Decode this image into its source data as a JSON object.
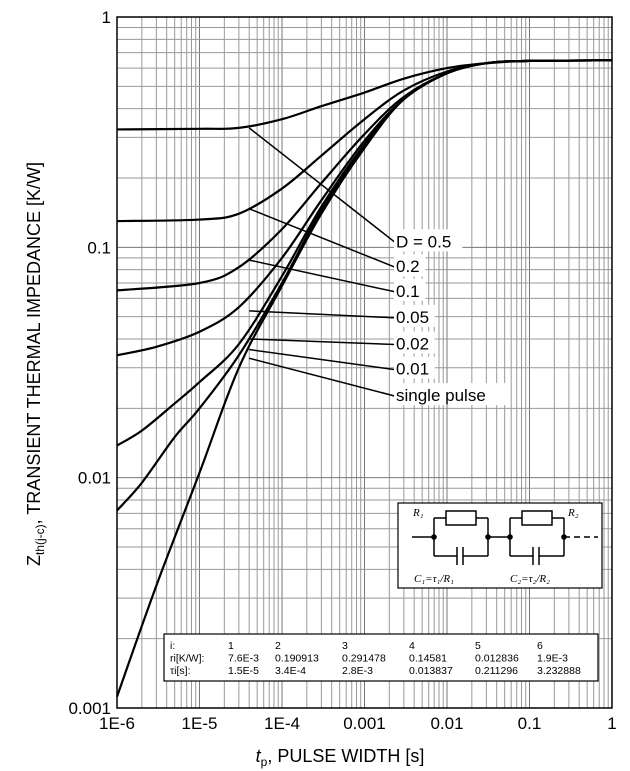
{
  "chart_data": {
    "type": "line",
    "xscale": "log",
    "yscale": "log",
    "xlim": [
      1e-06,
      1
    ],
    "ylim": [
      0.001,
      1
    ],
    "grid": true,
    "xlabel_var": "t",
    "xlabel_sub": "p",
    "xlabel_rest": ", PULSE WIDTH [s]",
    "ylabel_var": "Z",
    "ylabel_sub": "th(j-c)",
    "ylabel_rest": ", TRANSIENT THERMAL IMPEDANCE [K/W]",
    "x_ticks": [
      "1E-6",
      "1E-5",
      "1E-4",
      "0.001",
      "0.01",
      "0.1",
      "1"
    ],
    "y_ticks": [
      "0.001",
      "0.01",
      "0.1",
      "1"
    ],
    "series": [
      {
        "name": "D = 0.5",
        "label_point": [
          4e-05,
          0.33
        ],
        "points": [
          [
            1e-06,
            0.325
          ],
          [
            1e-05,
            0.327
          ],
          [
            3e-05,
            0.33
          ],
          [
            0.0001,
            0.36
          ],
          [
            0.0003,
            0.41
          ],
          [
            0.001,
            0.47
          ],
          [
            0.003,
            0.54
          ],
          [
            0.01,
            0.6
          ],
          [
            0.03,
            0.63
          ],
          [
            0.1,
            0.645
          ],
          [
            1,
            0.648
          ]
        ]
      },
      {
        "name": "0.2",
        "label_point": [
          4e-05,
          0.147
        ],
        "points": [
          [
            1e-06,
            0.13
          ],
          [
            1e-05,
            0.132
          ],
          [
            3e-05,
            0.14
          ],
          [
            0.0001,
            0.18
          ],
          [
            0.0003,
            0.25
          ],
          [
            0.001,
            0.36
          ],
          [
            0.003,
            0.48
          ],
          [
            0.01,
            0.58
          ],
          [
            0.03,
            0.63
          ],
          [
            0.1,
            0.645
          ],
          [
            1,
            0.648
          ]
        ]
      },
      {
        "name": "0.1",
        "label_point": [
          4e-05,
          0.088
        ],
        "points": [
          [
            1e-06,
            0.065
          ],
          [
            1e-05,
            0.07
          ],
          [
            3e-05,
            0.082
          ],
          [
            0.0001,
            0.12
          ],
          [
            0.0003,
            0.19
          ],
          [
            0.001,
            0.31
          ],
          [
            0.003,
            0.45
          ],
          [
            0.01,
            0.57
          ],
          [
            0.03,
            0.63
          ],
          [
            0.1,
            0.645
          ],
          [
            1,
            0.648
          ]
        ]
      },
      {
        "name": "0.05",
        "label_point": [
          4e-05,
          0.053
        ],
        "points": [
          [
            1e-06,
            0.034
          ],
          [
            3e-06,
            0.037
          ],
          [
            1e-05,
            0.043
          ],
          [
            3e-05,
            0.055
          ],
          [
            0.0001,
            0.09
          ],
          [
            0.0003,
            0.16
          ],
          [
            0.001,
            0.29
          ],
          [
            0.003,
            0.44
          ],
          [
            0.01,
            0.57
          ],
          [
            0.03,
            0.63
          ],
          [
            0.1,
            0.645
          ],
          [
            1,
            0.648
          ]
        ]
      },
      {
        "name": "0.02",
        "label_point": [
          4e-05,
          0.04
        ],
        "points": [
          [
            1e-06,
            0.0138
          ],
          [
            2e-06,
            0.016
          ],
          [
            5e-06,
            0.021
          ],
          [
            1e-05,
            0.026
          ],
          [
            3e-05,
            0.038
          ],
          [
            0.0001,
            0.075
          ],
          [
            0.0003,
            0.15
          ],
          [
            0.001,
            0.28
          ],
          [
            0.003,
            0.44
          ],
          [
            0.01,
            0.57
          ],
          [
            0.03,
            0.63
          ],
          [
            0.1,
            0.645
          ],
          [
            1,
            0.648
          ]
        ]
      },
      {
        "name": "0.01",
        "label_point": [
          4e-05,
          0.036
        ],
        "points": [
          [
            1e-06,
            0.0072
          ],
          [
            2e-06,
            0.0095
          ],
          [
            5e-06,
            0.015
          ],
          [
            1e-05,
            0.02
          ],
          [
            3e-05,
            0.034
          ],
          [
            0.0001,
            0.07
          ],
          [
            0.0003,
            0.145
          ],
          [
            0.001,
            0.275
          ],
          [
            0.003,
            0.44
          ],
          [
            0.01,
            0.57
          ],
          [
            0.03,
            0.63
          ],
          [
            0.1,
            0.645
          ],
          [
            1,
            0.648
          ]
        ]
      },
      {
        "name": "single pulse",
        "label_point": [
          4e-05,
          0.033
        ],
        "points": [
          [
            1e-06,
            0.00112
          ],
          [
            3e-06,
            0.0034
          ],
          [
            1e-05,
            0.0105
          ],
          [
            3e-05,
            0.03
          ],
          [
            0.0001,
            0.068
          ],
          [
            0.0003,
            0.14
          ],
          [
            0.001,
            0.27
          ],
          [
            0.003,
            0.44
          ],
          [
            0.01,
            0.57
          ],
          [
            0.03,
            0.63
          ],
          [
            0.1,
            0.645
          ],
          [
            1,
            0.648
          ]
        ]
      }
    ],
    "label_anchors": [
      {
        "series": "D = 0.5",
        "y": 0.1
      },
      {
        "series": "0.2",
        "y": 0.078
      },
      {
        "series": "0.1",
        "y": 0.061
      },
      {
        "series": "0.05",
        "y": 0.047
      },
      {
        "series": "0.02",
        "y": 0.036
      },
      {
        "series": "0.01",
        "y": 0.028
      },
      {
        "series": "single pulse",
        "y": 0.0215
      }
    ],
    "rc_table": {
      "headers": [
        "i:",
        "1",
        "2",
        "3",
        "4",
        "5",
        "6"
      ],
      "rows": [
        [
          "ri[K/W]:",
          "7.6E-3",
          "0.190913",
          "0.291478",
          "0.14581",
          "0.012836",
          "1.9E-3"
        ],
        [
          "τi[s]:",
          "1.5E-5",
          "3.4E-4",
          "2.8E-3",
          "0.013837",
          "0.211296",
          "3.232888"
        ]
      ]
    },
    "circuit": {
      "r1": "R₁",
      "r2": "R₂",
      "c1": "C₁=τ₁/R₁",
      "c2": "C₂=τ₂/R₂"
    }
  }
}
